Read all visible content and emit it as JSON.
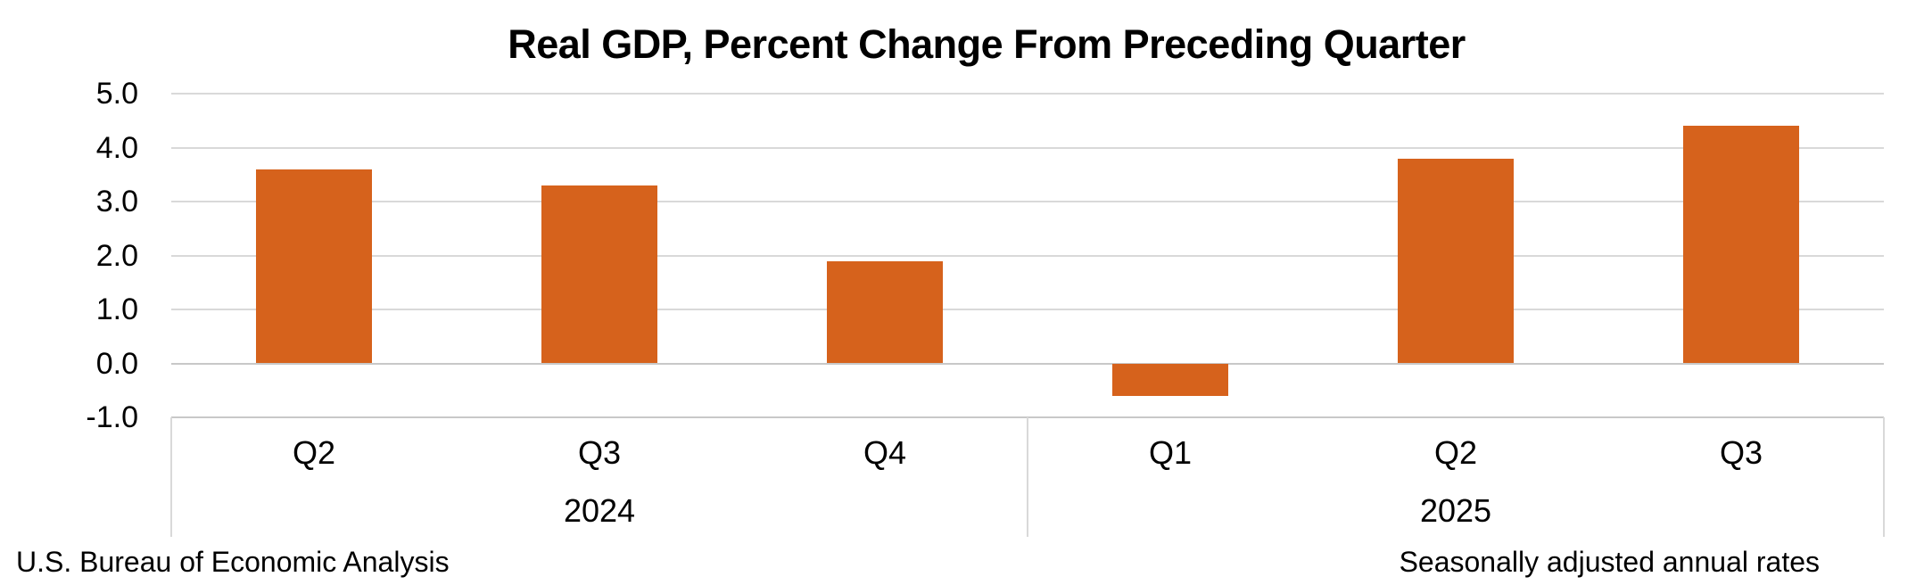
{
  "chart_data": {
    "type": "bar",
    "title": "Real GDP, Percent Change From Preceding Quarter",
    "categories": [
      "Q2",
      "Q3",
      "Q4",
      "Q1",
      "Q2",
      "Q3"
    ],
    "values": [
      3.6,
      3.3,
      1.9,
      -0.6,
      3.8,
      4.4
    ],
    "year_groups": [
      {
        "label": "2024",
        "start": 0,
        "count": 3
      },
      {
        "label": "2025",
        "start": 3,
        "count": 3
      }
    ],
    "ylim": [
      -1.0,
      5.0
    ],
    "ytick_labels": [
      "5.0",
      "4.0",
      "3.0",
      "2.0",
      "1.0",
      "0.0",
      "-1.0"
    ],
    "ytick_values": [
      5.0,
      4.0,
      3.0,
      2.0,
      1.0,
      0.0,
      -1.0
    ],
    "grid": true,
    "legend": false,
    "bar_color": "#D6621C",
    "gridline_color": "#D9D9D9",
    "axis_line_color": "#C8C8C8",
    "source_note": "U.S. Bureau of Economic Analysis",
    "adjustment_note": "Seasonally adjusted annual rates"
  }
}
